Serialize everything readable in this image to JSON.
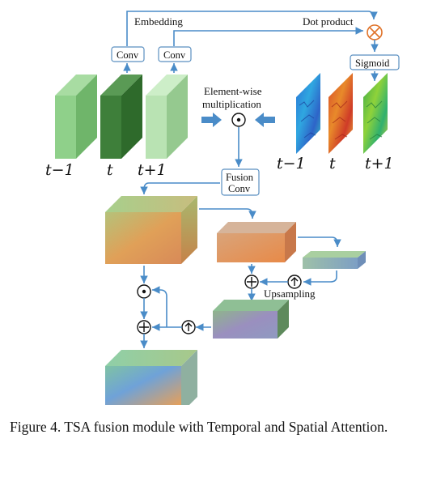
{
  "labels": {
    "embedding": "Embedding",
    "dot_product": "Dot product",
    "conv": "Conv",
    "sigmoid": "Sigmoid",
    "element_wise_1": "Element-wise",
    "element_wise_2": "multiplication",
    "fusion_1": "Fusion",
    "fusion_2": "Conv",
    "upsampling": "Upsampling"
  },
  "frame_labels": {
    "left": [
      "t−1",
      "t",
      "t+1"
    ],
    "right": [
      "t−1",
      "t",
      "t+1"
    ]
  },
  "symbols": {
    "cross": "⊗",
    "dot": "⊙",
    "plus": "⊕",
    "up": "↑"
  },
  "colors": {
    "arrow": "#4a8cc8",
    "box_border": "#5a8fc0",
    "frame_light": "#8fd08a",
    "frame_dark": "#3e7f3a",
    "frame_pale": "#b9e3b3",
    "cross_symbol": "#e0732a"
  },
  "caption": "Figure 4. TSA fusion module with Temporal and Spatial Attention."
}
